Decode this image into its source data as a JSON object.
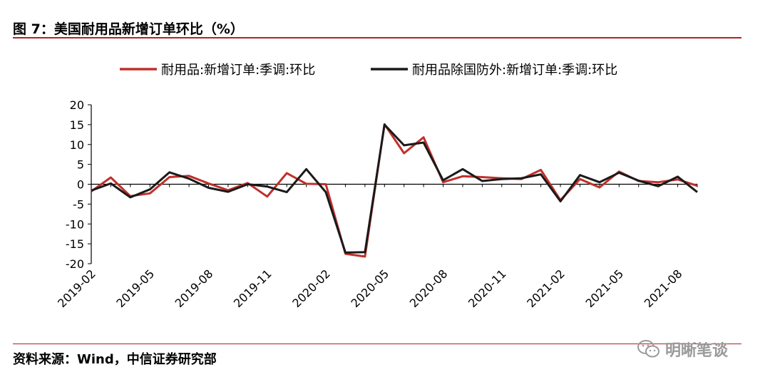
{
  "header": {
    "title": "图 7：美国耐用品新增订单环比（%）"
  },
  "footer": {
    "source": "资料来源：Wind，中信证券研究部",
    "watermark": "明晰笔谈",
    "watermark_icon": "wechat-icon"
  },
  "chart_data": {
    "type": "line",
    "xlabel": "",
    "ylabel": "",
    "ylim": [
      -20,
      20
    ],
    "yticks": [
      -20,
      -15,
      -10,
      -5,
      0,
      5,
      10,
      15,
      20
    ],
    "x_tick_labels": [
      "2019-02",
      "2019-05",
      "2019-08",
      "2019-11",
      "2020-02",
      "2020-05",
      "2020-08",
      "2020-11",
      "2021-02",
      "2021-05",
      "2021-08"
    ],
    "x": [
      "2019-02",
      "2019-03",
      "2019-04",
      "2019-05",
      "2019-06",
      "2019-07",
      "2019-08",
      "2019-09",
      "2019-10",
      "2019-11",
      "2019-12",
      "2020-01",
      "2020-02",
      "2020-03",
      "2020-04",
      "2020-05",
      "2020-06",
      "2020-07",
      "2020-08",
      "2020-09",
      "2020-10",
      "2020-11",
      "2020-12",
      "2021-01",
      "2021-02",
      "2021-03",
      "2021-04",
      "2021-05",
      "2021-06",
      "2021-07",
      "2021-08",
      "2021-09"
    ],
    "legend_position": "top",
    "grid": false,
    "series": [
      {
        "name": "耐用品:新增订单:季调:环比",
        "color": "#c0302b",
        "values": [
          -1.8,
          1.7,
          -3.0,
          -2.3,
          1.8,
          2.1,
          0.2,
          -1.5,
          0.3,
          -3.1,
          2.8,
          0.1,
          0.0,
          -17.5,
          -18.2,
          15.1,
          7.8,
          11.8,
          0.5,
          2.0,
          1.8,
          1.5,
          1.3,
          3.6,
          -4.0,
          1.3,
          -0.8,
          3.2,
          0.8,
          0.5,
          1.2,
          -0.4
        ]
      },
      {
        "name": "耐用品除国防外:新增订单:季调:环比",
        "color": "#1a1a1a",
        "values": [
          -1.6,
          0.2,
          -3.3,
          -1.3,
          3.0,
          1.4,
          -0.9,
          -1.9,
          0.0,
          -0.6,
          -2.0,
          3.8,
          -2.0,
          -17.2,
          -17.1,
          15.0,
          9.8,
          10.5,
          1.0,
          3.8,
          0.8,
          1.3,
          1.5,
          2.5,
          -4.3,
          2.3,
          0.5,
          2.9,
          0.9,
          -0.5,
          1.9,
          -2.0
        ]
      }
    ]
  }
}
